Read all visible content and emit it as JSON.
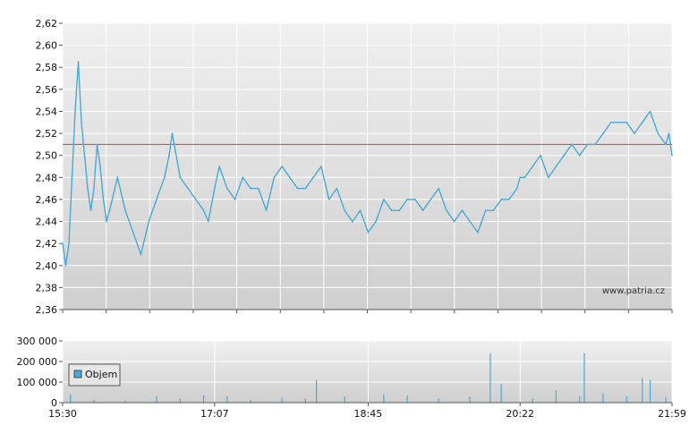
{
  "chart_data": [
    {
      "type": "line",
      "title": "",
      "xlabel": "",
      "ylabel": "",
      "ylim": [
        2.36,
        2.62
      ],
      "y_ticks": [
        "2,36",
        "2,38",
        "2,40",
        "2,42",
        "2,44",
        "2,46",
        "2,48",
        "2,50",
        "2,52",
        "2,54",
        "2,56",
        "2,58",
        "2,60",
        "2,62"
      ],
      "grid": true,
      "reference_line": {
        "value": 2.51,
        "color": "#e03a3a"
      },
      "line_color": "#4aa9d4",
      "series": [
        {
          "x": [
            "15:30",
            "15:32",
            "15:34",
            "15:36",
            "15:38",
            "15:40",
            "15:42",
            "15:44",
            "15:46",
            "15:48",
            "15:50",
            "15:52",
            "15:54",
            "15:56",
            "15:58",
            "16:00",
            "16:05",
            "16:10",
            "16:15",
            "16:20",
            "16:25",
            "16:30",
            "16:35",
            "16:38",
            "16:40",
            "16:45",
            "16:50",
            "16:55",
            "17:00",
            "17:03",
            "17:07",
            "17:10",
            "17:15",
            "17:20",
            "17:25",
            "17:30",
            "17:35",
            "17:40",
            "17:45",
            "17:50",
            "17:55",
            "18:00",
            "18:05",
            "18:10",
            "18:15",
            "18:20",
            "18:25",
            "18:30",
            "18:35",
            "18:40",
            "18:45",
            "18:50",
            "18:55",
            "19:00",
            "19:05",
            "19:10",
            "19:15",
            "19:20",
            "19:25",
            "19:30",
            "19:35",
            "19:40",
            "19:45",
            "19:50",
            "19:55",
            "20:00",
            "20:05",
            "20:10",
            "20:15",
            "20:20",
            "20:22",
            "20:25",
            "20:30",
            "20:35",
            "20:40",
            "20:45",
            "20:50",
            "20:55",
            "21:00",
            "21:05",
            "21:10",
            "21:15",
            "21:20",
            "21:25",
            "21:30",
            "21:35",
            "21:40",
            "21:45",
            "21:50",
            "21:55",
            "21:57",
            "21:59"
          ],
          "values": [
            2.42,
            2.4,
            2.42,
            2.48,
            2.54,
            2.585,
            2.53,
            2.5,
            2.47,
            2.45,
            2.47,
            2.51,
            2.49,
            2.46,
            2.44,
            2.45,
            2.48,
            2.45,
            2.43,
            2.41,
            2.44,
            2.46,
            2.48,
            2.5,
            2.52,
            2.48,
            2.47,
            2.46,
            2.45,
            2.44,
            2.47,
            2.49,
            2.47,
            2.46,
            2.48,
            2.47,
            2.47,
            2.45,
            2.48,
            2.49,
            2.48,
            2.47,
            2.47,
            2.48,
            2.49,
            2.46,
            2.47,
            2.45,
            2.44,
            2.45,
            2.43,
            2.44,
            2.46,
            2.45,
            2.45,
            2.46,
            2.46,
            2.45,
            2.46,
            2.47,
            2.45,
            2.44,
            2.45,
            2.44,
            2.43,
            2.45,
            2.45,
            2.46,
            2.46,
            2.47,
            2.48,
            2.48,
            2.49,
            2.5,
            2.48,
            2.49,
            2.5,
            2.51,
            2.5,
            2.51,
            2.51,
            2.52,
            2.53,
            2.53,
            2.53,
            2.52,
            2.53,
            2.54,
            2.52,
            2.51,
            2.52,
            2.5
          ]
        }
      ]
    },
    {
      "type": "bar",
      "title": "",
      "xlabel": "",
      "ylabel": "",
      "ylim": [
        0,
        300000
      ],
      "y_ticks": [
        "0",
        "100 000",
        "200 000",
        "300 000"
      ],
      "x_ticks": [
        "15:30",
        "17:07",
        "18:45",
        "20:22",
        "21:59"
      ],
      "grid": true,
      "legend": {
        "label": "Objem",
        "position": "left"
      },
      "bar_color": "#4aa9d4",
      "series": [
        {
          "name": "Objem",
          "x": [
            "15:35",
            "15:50",
            "16:10",
            "16:30",
            "16:45",
            "17:00",
            "17:15",
            "17:30",
            "17:50",
            "18:05",
            "18:12",
            "18:30",
            "18:55",
            "19:10",
            "19:30",
            "19:50",
            "20:03",
            "20:10",
            "20:30",
            "20:45",
            "21:00",
            "21:03",
            "21:15",
            "21:30",
            "21:40",
            "21:45",
            "21:55"
          ],
          "values": [
            40000,
            15000,
            10000,
            30000,
            20000,
            35000,
            30000,
            15000,
            25000,
            20000,
            110000,
            30000,
            40000,
            35000,
            20000,
            30000,
            240000,
            90000,
            20000,
            60000,
            30000,
            240000,
            45000,
            30000,
            120000,
            110000,
            25000
          ]
        }
      ]
    }
  ],
  "watermark": "www.patria.cz"
}
